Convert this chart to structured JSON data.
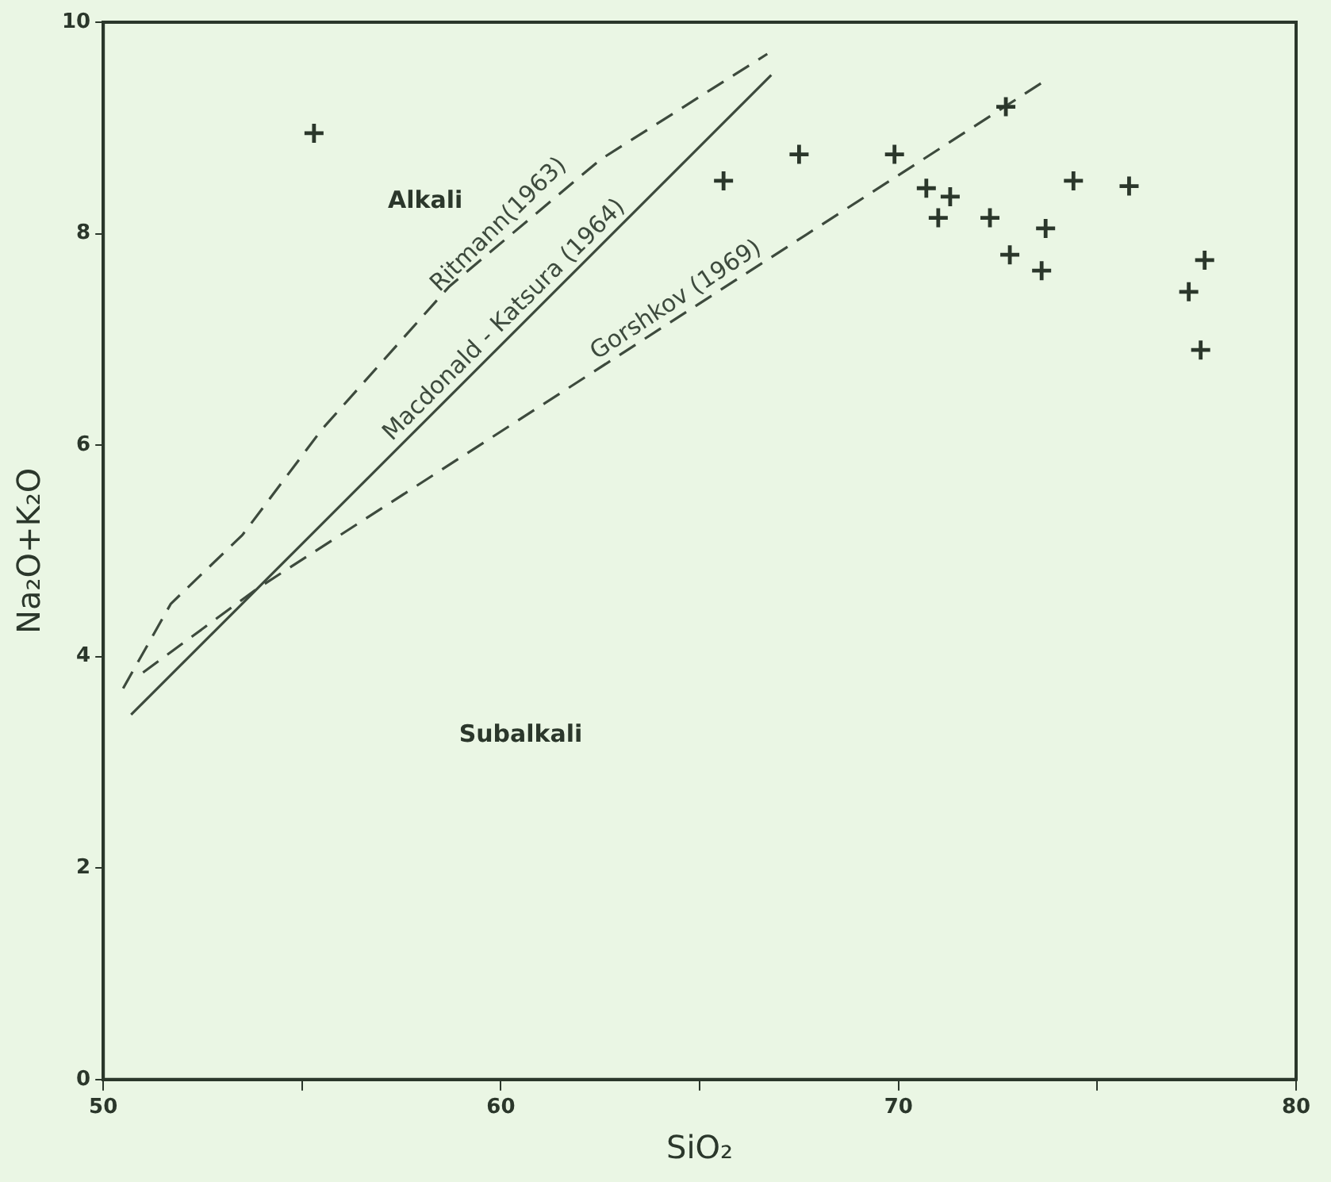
{
  "chart_data": {
    "type": "scatter",
    "xlabel": "SiO₂",
    "ylabel": "Na₂O+K₂O",
    "xlim": [
      50,
      80
    ],
    "ylim": [
      0,
      10
    ],
    "xticks": [
      50,
      {
        "value": 55,
        "label": null
      },
      60,
      {
        "value": 65,
        "label": null
      },
      70,
      {
        "value": 75,
        "label": null
      },
      80
    ],
    "yticks": [
      0,
      2,
      4,
      6,
      8,
      10
    ],
    "grid": false,
    "legend": false,
    "marker": "cross",
    "series": [
      {
        "type": "scatter",
        "color": "#2b372b",
        "x": [
          55.3,
          65.6,
          67.5,
          69.9,
          70.7,
          71.3,
          71.0,
          72.3,
          73.7,
          72.8,
          73.6,
          74.4,
          75.8,
          77.7,
          77.3,
          77.6,
          72.7
        ],
        "values": [
          8.95,
          8.5,
          8.75,
          8.75,
          8.43,
          8.35,
          8.15,
          8.15,
          8.05,
          7.8,
          7.65,
          8.5,
          8.45,
          7.75,
          7.45,
          6.9,
          9.2
        ]
      },
      {
        "type": "line",
        "name": "Ritmann(1963)",
        "color": "#3d4a3d",
        "line_style": "dashed",
        "marker": "none",
        "x": [
          50.5,
          51.7,
          53.5,
          55.5,
          58.7,
          62.5,
          66.7
        ],
        "values": [
          3.7,
          4.5,
          5.15,
          6.15,
          7.5,
          8.7,
          9.7
        ]
      },
      {
        "type": "line",
        "name": "Macdonald - Katsura (1964)",
        "color": "#3d4a3d",
        "line_style": "solid",
        "marker": "none",
        "x": [
          50.7,
          66.8
        ],
        "values": [
          3.45,
          9.5
        ]
      },
      {
        "type": "line",
        "name": "Gorshkov (1969)",
        "color": "#3d4a3d",
        "line_style": "dashed",
        "marker": "none",
        "x": [
          51,
          53.9,
          73.7
        ],
        "values": [
          3.85,
          4.65,
          9.45
        ]
      }
    ],
    "annotations": [
      "Alkali",
      "Subalkali"
    ]
  }
}
